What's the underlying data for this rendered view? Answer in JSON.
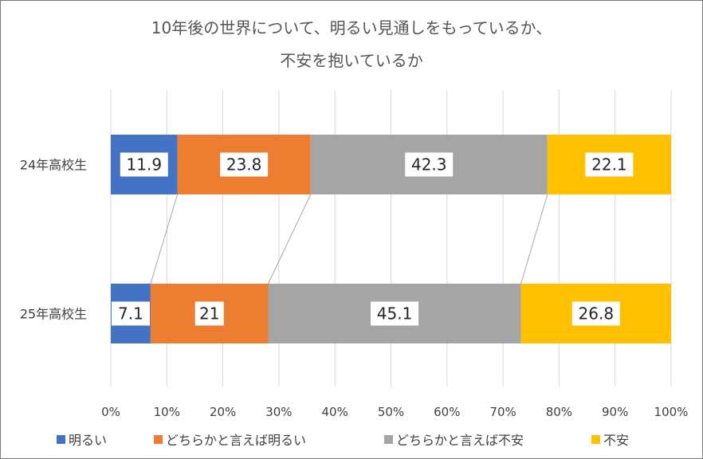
{
  "chart_data": {
    "type": "bar",
    "orientation": "horizontal",
    "stacked": "percent",
    "title": "10年後の世界について、明るい見通しをもっているか、",
    "title_line2": "不安を抱いているか",
    "categories": [
      "24年高校生",
      "25年高校生"
    ],
    "series": [
      {
        "name": "明るい",
        "color": "#4472C4",
        "values": [
          11.9,
          7.1
        ]
      },
      {
        "name": "どちらかと言えば明るい",
        "color": "#ED7D31",
        "values": [
          23.8,
          21
        ]
      },
      {
        "name": "どちらかと言えば不安",
        "color": "#A5A5A5",
        "values": [
          42.3,
          45.1
        ]
      },
      {
        "name": "不安",
        "color": "#FFC000",
        "values": [
          22.1,
          26.8
        ]
      }
    ],
    "value_labels": [
      [
        "11.9",
        "7.1"
      ],
      [
        "23.8",
        "21"
      ],
      [
        "42.3",
        "45.1"
      ],
      [
        "22.1",
        "26.8"
      ]
    ],
    "xlim": [
      0,
      100
    ],
    "xticks": [
      "0%",
      "10%",
      "20%",
      "30%",
      "40%",
      "50%",
      "60%",
      "70%",
      "80%",
      "90%",
      "100%"
    ],
    "grid": true,
    "series_lines": true,
    "legend_position": "bottom"
  }
}
